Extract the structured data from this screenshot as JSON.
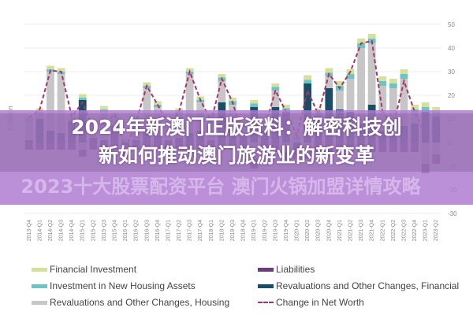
{
  "chart_data": {
    "type": "bar",
    "ylabel": "€ Billion",
    "ylim": [
      -30,
      50
    ],
    "yticks": [
      50,
      40,
      30,
      20,
      10,
      0,
      -10,
      -20,
      -30
    ],
    "grid": true,
    "legend_placement": "bottom",
    "categories": [
      "2013-Q4",
      "2014-Q1",
      "2014-Q2",
      "2014-Q3",
      "2014-Q4",
      "2015-Q1",
      "2015-Q2",
      "2015-Q3",
      "2015-Q4",
      "2016-Q1",
      "2016-Q2",
      "2016-Q3",
      "2016-Q4",
      "2017-Q1",
      "2017-Q2",
      "2017-Q3",
      "2017-Q4",
      "2018-Q1",
      "2018-Q2",
      "2018-Q3",
      "2018-Q4",
      "2019-Q1",
      "2019-Q2",
      "2019-Q3",
      "2019-Q4",
      "2020-Q1",
      "2020-Q2",
      "2020-Q3",
      "2020-Q4",
      "2021-Q1",
      "2021-Q2",
      "2021-Q3",
      "2021-Q4",
      "2022-Q1",
      "2022-Q2",
      "2022-Q3",
      "2022-Q4",
      "2023-Q1",
      "2023-Q2"
    ],
    "series": [
      {
        "name": "Financial Investment",
        "color": "#d4e09b",
        "type": "bar",
        "values": [
          1.5,
          1.5,
          1.5,
          1.5,
          1.5,
          1.5,
          1.5,
          1.5,
          1.5,
          1.5,
          1.5,
          1.5,
          1.5,
          1.5,
          1.5,
          1.5,
          1.5,
          1.5,
          1.5,
          1.5,
          1.5,
          1.5,
          1.5,
          1.5,
          1.5,
          2,
          2,
          2,
          2,
          2,
          2,
          2,
          2,
          2,
          2,
          2,
          2,
          2,
          2
        ]
      },
      {
        "name": "Investment in New Housing Assets",
        "color": "#6cc4c4",
        "type": "bar",
        "values": [
          1,
          1,
          1,
          1,
          1,
          1,
          1,
          1,
          1,
          1,
          1,
          1,
          1,
          1,
          1,
          1,
          1,
          1.5,
          1.5,
          1.5,
          1.5,
          1.5,
          1.5,
          1.5,
          1.5,
          1.5,
          1.5,
          1.5,
          1.5,
          2,
          2,
          2,
          2,
          2,
          2,
          2,
          2,
          2,
          2
        ]
      },
      {
        "name": "Revaluations and Other Changes, Housing",
        "color": "#c6c6c6",
        "type": "bar",
        "values": [
          8,
          2,
          25,
          25,
          0,
          -3,
          3,
          12,
          3,
          -1,
          7,
          18,
          12,
          6,
          10,
          25,
          12,
          7,
          9,
          9,
          4,
          -7,
          1,
          7,
          -4,
          1,
          -3,
          0,
          5,
          8,
          14,
          32,
          26,
          19,
          20,
          20,
          4,
          -9,
          -5
        ]
      },
      {
        "name": "Liabilities",
        "color": "#6b3d7a",
        "type": "bar",
        "values": [
          -3,
          -3,
          -3,
          -3,
          -3,
          -3,
          -3,
          -3,
          -3,
          -3,
          -3,
          -3,
          -3,
          -3,
          -3,
          -3,
          -3,
          -3,
          -3,
          -3,
          -3,
          -4,
          -4,
          -4,
          -4,
          -4,
          -4,
          -4,
          -4,
          -4,
          -4,
          -4,
          -4,
          -4,
          -4,
          -4,
          -4,
          -4,
          -4
        ]
      },
      {
        "name": "Revaluations and Other Changes, Financial",
        "color": "#1a4d66",
        "type": "bar",
        "values": [
          1,
          10,
          5,
          4,
          9,
          18,
          2,
          1,
          7,
          -2,
          1,
          5,
          3,
          1,
          2,
          4,
          5,
          1,
          17,
          7,
          3,
          15,
          5,
          15,
          13,
          -3,
          25,
          11,
          23,
          14,
          13,
          8,
          16,
          5,
          3,
          7,
          8,
          13,
          11
        ]
      },
      {
        "name": "Change in Net Worth",
        "color": "#a8336a",
        "type": "line",
        "values": [
          10.5,
          14,
          30.5,
          30,
          11,
          17,
          6,
          8,
          12,
          -3,
          9,
          24,
          16,
          8,
          13,
          30,
          18,
          9,
          27,
          17,
          2,
          7,
          6,
          22,
          13,
          3,
          22,
          12,
          29,
          23,
          30,
          42,
          43,
          13,
          7,
          26,
          13,
          3,
          6
        ]
      }
    ]
  },
  "overlay": {
    "title_line1": "2024年新澳门正版资料：解密科技创",
    "title_line2": "新如何推动澳门旅游业的新变革",
    "watermark": "2023十大股票配资平台 澳门火锅加盟详情攻略"
  }
}
